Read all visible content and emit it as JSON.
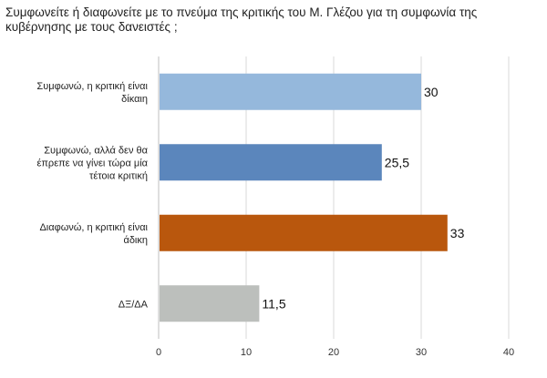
{
  "chart_data": {
    "type": "bar",
    "orientation": "horizontal",
    "title": "Συμφωνείτε ή διαφωνείτε με το πνεύμα της κριτικής του Μ. Γλέζου για τη συμφωνία της κυβέρνησης με τους δανειστές ;",
    "categories": [
      [
        "Συμφωνώ, η κριτική είναι",
        "δίκαιη"
      ],
      [
        "Συμφωνώ, αλλά δεν θα",
        "έπρεπε να γίνει τώρα μία",
        "τέτοια κριτική"
      ],
      [
        "Διαφωνώ, η κριτική είναι",
        "άδικη"
      ],
      [
        "ΔΞ/ΔΑ"
      ]
    ],
    "values": [
      30,
      25.5,
      33,
      11.5
    ],
    "value_labels": [
      "30",
      "25,5",
      "33",
      "11,5"
    ],
    "colors": [
      "#95b8dc",
      "#5b86bc",
      "#b9570d",
      "#bcbfbc"
    ],
    "xlim": [
      0,
      40
    ],
    "xticks": [
      0,
      10,
      20,
      30,
      40
    ],
    "grid": true,
    "xlabel": "",
    "ylabel": ""
  }
}
